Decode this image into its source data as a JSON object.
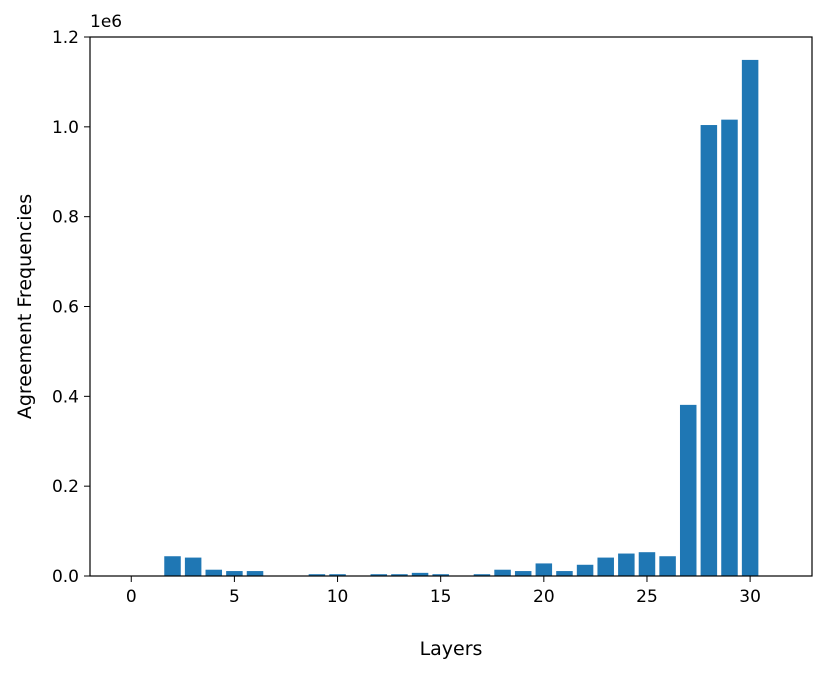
{
  "chart_data": {
    "type": "bar",
    "xlabel": "Layers",
    "ylabel": "Agreement Frequencies",
    "y_offset_label": "1e6",
    "xlim": [
      -2,
      33
    ],
    "ylim": [
      0,
      1.2
    ],
    "x_ticks": [
      0,
      5,
      10,
      15,
      20,
      25,
      30
    ],
    "y_ticks": [
      0.0,
      0.2,
      0.4,
      0.6,
      0.8,
      1.0,
      1.2
    ],
    "y_tick_labels": [
      "0.0",
      "0.2",
      "0.4",
      "0.6",
      "0.8",
      "1.0",
      "1.2"
    ],
    "grid": false,
    "bar_color": "#1f77b4",
    "x": [
      0,
      1,
      2,
      3,
      4,
      5,
      6,
      7,
      8,
      9,
      10,
      11,
      12,
      13,
      14,
      15,
      16,
      17,
      18,
      19,
      20,
      21,
      22,
      23,
      24,
      25,
      26,
      27,
      28,
      29,
      30
    ],
    "values": [
      0,
      0,
      0.044,
      0.041,
      0.014,
      0.011,
      0.011,
      0,
      0,
      0.004,
      0.004,
      0,
      0.004,
      0.004,
      0.007,
      0.004,
      0,
      0.004,
      0.014,
      0.011,
      0.028,
      0.011,
      0.025,
      0.041,
      0.05,
      0.053,
      0.044,
      0.381,
      1.004,
      1.016,
      1.149
    ]
  }
}
